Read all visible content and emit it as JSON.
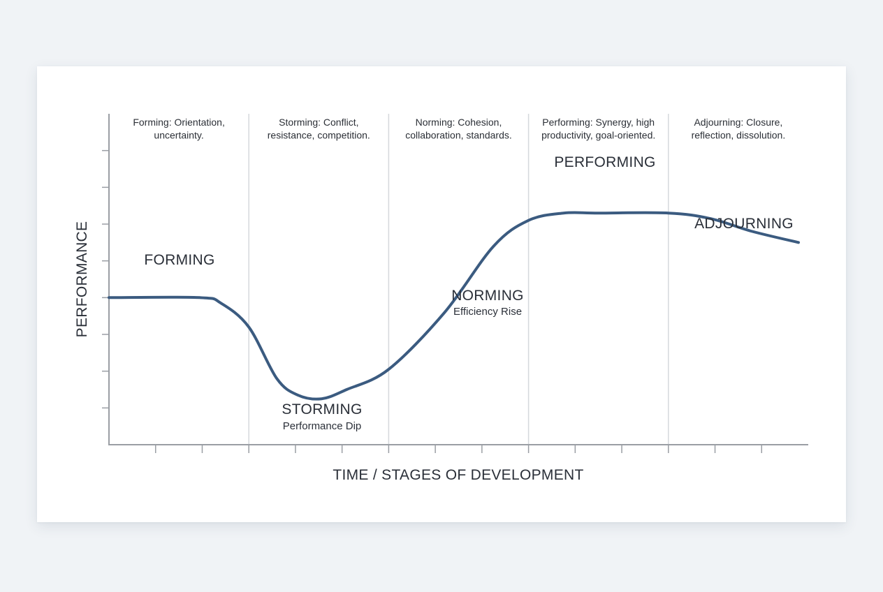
{
  "chart_data": {
    "type": "line",
    "xlabel": "TIME / STAGES OF DEVELOPMENT",
    "ylabel": "PERFORMANCE",
    "xlim": [
      0,
      5
    ],
    "ylim": [
      0,
      9
    ],
    "x_ticks_per_stage": 3,
    "y_tick_values": [
      1,
      2,
      3,
      4,
      5,
      6,
      7,
      8
    ],
    "stages": [
      {
        "name": "FORMING",
        "subtitle": "",
        "description": [
          "Forming: Orientation,",
          "uncertainty."
        ]
      },
      {
        "name": "STORMING",
        "subtitle": "Performance Dip",
        "description": [
          "Storming: Conflict,",
          "resistance, competition."
        ]
      },
      {
        "name": "NORMING",
        "subtitle": "Efficiency Rise",
        "description": [
          "Norming: Cohesion,",
          "collaboration, standards."
        ]
      },
      {
        "name": "PERFORMING",
        "subtitle": "",
        "description": [
          "Performing: Synergy, high",
          "productivity, goal-oriented."
        ]
      },
      {
        "name": "ADJOURNING",
        "subtitle": "",
        "description": [
          "Adjourning: Closure,",
          "reflection, dissolution."
        ]
      }
    ],
    "series": [
      {
        "color": "#3b5b80",
        "points": [
          [
            0.0,
            4.0
          ],
          [
            0.65,
            4.0
          ],
          [
            0.8,
            3.85
          ],
          [
            1.0,
            3.2
          ],
          [
            1.2,
            1.8
          ],
          [
            1.35,
            1.35
          ],
          [
            1.52,
            1.25
          ],
          [
            1.7,
            1.5
          ],
          [
            2.0,
            2.05
          ],
          [
            2.4,
            3.6
          ],
          [
            2.75,
            5.4
          ],
          [
            3.0,
            6.1
          ],
          [
            3.25,
            6.3
          ],
          [
            3.5,
            6.3
          ],
          [
            4.0,
            6.3
          ],
          [
            4.3,
            6.15
          ],
          [
            4.6,
            5.8
          ],
          [
            4.93,
            5.5
          ]
        ]
      }
    ],
    "colors": {
      "line": "#3b5b80",
      "axis": "#9a9ea4",
      "divider": "#d5d8dc"
    }
  }
}
